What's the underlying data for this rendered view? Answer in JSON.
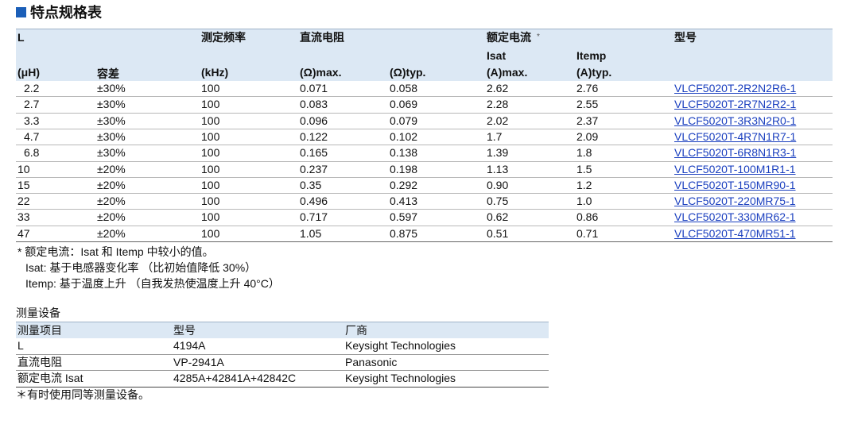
{
  "title": "特点规格表",
  "spec_table": {
    "header": {
      "row1": [
        "L",
        null,
        "测定频率",
        "直流电阻",
        null,
        "额定电流",
        null,
        "型号"
      ],
      "rated_current_mark": "*",
      "row2": [
        null,
        null,
        null,
        null,
        null,
        "Isat",
        "Itemp",
        null
      ],
      "row3": [
        "(μH)",
        "容差",
        "(kHz)",
        "(Ω)max.",
        "(Ω)typ.",
        "(A)max.",
        "(A)typ.",
        null
      ]
    },
    "rows": [
      [
        "2.2",
        "±30%",
        "100",
        "0.071",
        "0.058",
        "2.62",
        "2.76",
        "VLCF5020T-2R2N2R6-1"
      ],
      [
        "2.7",
        "±30%",
        "100",
        "0.083",
        "0.069",
        "2.28",
        "2.55",
        "VLCF5020T-2R7N2R2-1"
      ],
      [
        "3.3",
        "±30%",
        "100",
        "0.096",
        "0.079",
        "2.02",
        "2.37",
        "VLCF5020T-3R3N2R0-1"
      ],
      [
        "4.7",
        "±30%",
        "100",
        "0.122",
        "0.102",
        "1.7",
        "2.09",
        "VLCF5020T-4R7N1R7-1"
      ],
      [
        "6.8",
        "±30%",
        "100",
        "0.165",
        "0.138",
        "1.39",
        "1.8",
        "VLCF5020T-6R8N1R3-1"
      ],
      [
        "10",
        "±20%",
        "100",
        "0.237",
        "0.198",
        "1.13",
        "1.5",
        "VLCF5020T-100M1R1-1"
      ],
      [
        "15",
        "±20%",
        "100",
        "0.35",
        "0.292",
        "0.90",
        "1.2",
        "VLCF5020T-150MR90-1"
      ],
      [
        "22",
        "±20%",
        "100",
        "0.496",
        "0.413",
        "0.75",
        "1.0",
        "VLCF5020T-220MR75-1"
      ],
      [
        "33",
        "±20%",
        "100",
        "0.717",
        "0.597",
        "0.62",
        "0.86",
        "VLCF5020T-330MR62-1"
      ],
      [
        "47",
        "±20%",
        "100",
        "1.05",
        "0.875",
        "0.51",
        "0.71",
        "VLCF5020T-470MR51-1"
      ]
    ],
    "notes": [
      "*  额定电流：Isat 和 Itemp 中较小的值。",
      "Isat: 基于电感器变化率 （比初始值降低 30%）",
      "Itemp: 基于温度上升 （自我发热使温度上升 40°C）"
    ]
  },
  "equipment": {
    "title": "测量设备",
    "header": [
      "测量项目",
      "型号",
      "厂商"
    ],
    "rows": [
      [
        "L",
        "4194A",
        "Keysight Technologies"
      ],
      [
        "直流电阻",
        "VP-2941A",
        "Panasonic"
      ],
      [
        "额定电流 Isat",
        "4285A+42841A+42842C",
        "Keysight Technologies"
      ]
    ],
    "footnote": "＊有时使用同等测量设备。"
  }
}
